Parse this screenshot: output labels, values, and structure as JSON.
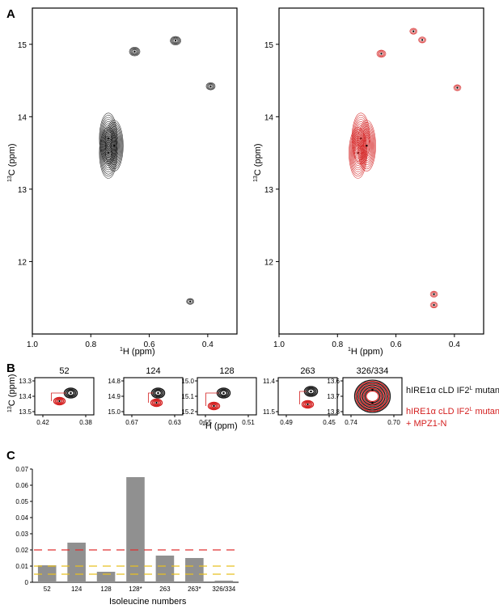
{
  "panel_labels": {
    "a": "A",
    "b": "B",
    "c": "C"
  },
  "colors": {
    "black_spectrum": "#1a1a1a",
    "red_spectrum": "#d42020",
    "bar": "#909090",
    "threshold_red": "#e03030",
    "threshold_yellow": "#e8c020"
  },
  "chart_data": [
    {
      "type": "scatter",
      "panel": "A-left",
      "xlabel": "1H (ppm)",
      "ylabel": "13C (ppm)",
      "xlim": [
        1.0,
        0.3
      ],
      "ylim": [
        15.5,
        11.0
      ],
      "xticks": [
        "1.0",
        "0.8",
        "0.6",
        "0.4"
      ],
      "yticks": [
        "12",
        "13",
        "14",
        "15"
      ],
      "peaks": [
        {
          "x": 0.46,
          "y": 11.45,
          "r": 1
        },
        {
          "x": 0.74,
          "y": 13.5,
          "r": 3
        },
        {
          "x": 0.74,
          "y": 13.7,
          "r": 3
        },
        {
          "x": 0.72,
          "y": 13.6,
          "r": 3
        },
        {
          "x": 0.39,
          "y": 14.42,
          "r": 1.5
        },
        {
          "x": 0.65,
          "y": 14.9,
          "r": 2
        },
        {
          "x": 0.51,
          "y": 15.05,
          "r": 2
        }
      ]
    },
    {
      "type": "scatter",
      "panel": "A-right",
      "xlabel": "1H (ppm)",
      "ylabel": "13C (ppm)",
      "xlim": [
        1.0,
        0.3
      ],
      "ylim": [
        15.5,
        11.0
      ],
      "xticks": [
        "1.0",
        "0.8",
        "0.6",
        "0.4"
      ],
      "yticks": [
        "12",
        "13",
        "14",
        "15"
      ],
      "peaks": [
        {
          "x": 0.47,
          "y": 11.4,
          "r": 1
        },
        {
          "x": 0.47,
          "y": 11.55,
          "r": 1
        },
        {
          "x": 0.73,
          "y": 13.5,
          "r": 3
        },
        {
          "x": 0.72,
          "y": 13.7,
          "r": 3
        },
        {
          "x": 0.7,
          "y": 13.6,
          "r": 3
        },
        {
          "x": 0.39,
          "y": 14.4,
          "r": 1
        },
        {
          "x": 0.65,
          "y": 14.87,
          "r": 1.5
        },
        {
          "x": 0.51,
          "y": 15.06,
          "r": 1.2
        },
        {
          "x": 0.54,
          "y": 15.18,
          "r": 1
        }
      ]
    },
    {
      "type": "bar",
      "panel": "C",
      "categories": [
        "52",
        "124",
        "128",
        "128*",
        "263",
        "263*",
        "326/334"
      ],
      "values": [
        0.0105,
        0.0245,
        0.0065,
        0.065,
        0.0165,
        0.015,
        0.001
      ],
      "xlabel": "Isoleucine numbers",
      "ylabel": "",
      "ylim": [
        0,
        0.07
      ],
      "yticks": [
        "0",
        "0.01",
        "0.02",
        "0.03",
        "0.04",
        "0.05",
        "0.06",
        "0.07"
      ],
      "thresholds": [
        {
          "value": 0.02,
          "color": "red"
        },
        {
          "value": 0.01,
          "color": "yellow"
        },
        {
          "value": 0.005,
          "color": "yellow"
        }
      ],
      "grid": false
    }
  ],
  "zoom_panels": [
    {
      "title": "52",
      "yticks": [
        "13.3",
        "13.4",
        "13.5"
      ],
      "xticks": [
        "0.42",
        "0.38"
      ]
    },
    {
      "title": "124",
      "yticks": [
        "14.8",
        "14.9",
        "15.0"
      ],
      "xticks": [
        "0.67",
        "0.63"
      ]
    },
    {
      "title": "128",
      "yticks": [
        "15.0",
        "15.1",
        "15.2"
      ],
      "xticks": [
        "0.55",
        "0.51"
      ]
    },
    {
      "title": "263",
      "yticks": [
        "11.4",
        "11.5"
      ],
      "xticks": [
        "0.49",
        "0.45"
      ]
    },
    {
      "title": "326/334",
      "yticks": [
        "13.6",
        "13.7",
        "13.8"
      ],
      "xticks": [
        "0.74",
        "0.70"
      ]
    }
  ],
  "zoom_axis": {
    "ylabel": "13C (ppm)",
    "xlabel": "1H (ppm)"
  },
  "legend": {
    "black_line1": "hIRE1α cLD IF2",
    "black_sup": "L",
    "black_suffix": " mutant",
    "red_line1": "hIRE1α cLD IF2",
    "red_sup": "L",
    "red_suffix": " mutant",
    "red_line2": "+ MPZ1-N"
  }
}
